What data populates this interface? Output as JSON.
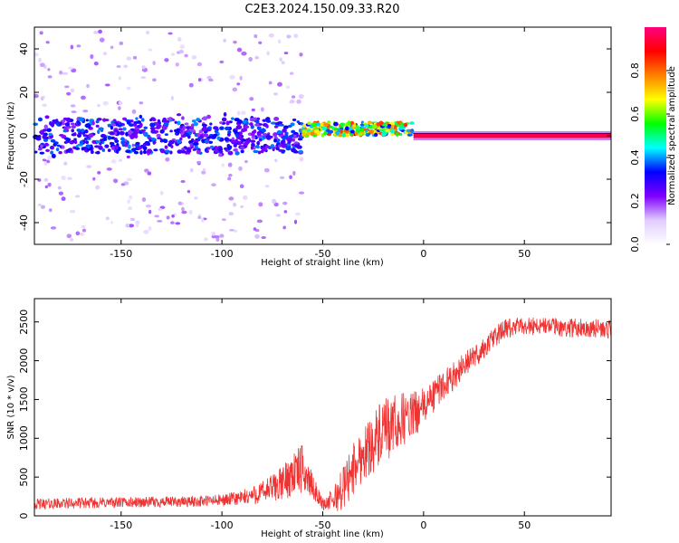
{
  "title": "C2E3.2024.150.09.33.R20",
  "colors": {
    "snr_line": "#ee3333",
    "axis": "#000000",
    "spectrum_low": "#e7d9ff",
    "spectrum_mid": "#6a00ff",
    "spectrum_high": "#ff0044"
  },
  "chart_data": [
    {
      "type": "heatmap",
      "name": "spectrogram",
      "title": "C2E3.2024.150.09.33.R20",
      "xlabel": "Height of straight line (km)",
      "ylabel": "Frequency (Hz)",
      "xlim": [
        -193,
        93
      ],
      "ylim": [
        -50,
        50
      ],
      "x_ticks": [
        -150,
        -100,
        -50,
        0,
        50
      ],
      "y_ticks": [
        -40,
        -20,
        0,
        20,
        40
      ],
      "colorbar": {
        "label": "Normalized spectral amplitude",
        "range": [
          0,
          1
        ],
        "ticks": [
          "0.0",
          "0.2",
          "0.4",
          "0.6",
          "0.8"
        ],
        "tick_values": [
          0.0,
          0.2,
          0.4,
          0.6,
          0.8
        ],
        "colormap": [
          "#ffffff",
          "#e0ccff",
          "#7f00ff",
          "#0000ff",
          "#00ffff",
          "#00ff00",
          "#ffff00",
          "#ff8000",
          "#ff0000",
          "#ff0080"
        ]
      },
      "features": [
        {
          "x_range": [
            -193,
            -60
          ],
          "freq_center": 0,
          "freq_halfwidth": 8,
          "amplitude": 0.25,
          "description": "noisy broadband signal"
        },
        {
          "x_range": [
            -60,
            -5
          ],
          "freq_center": 3,
          "freq_halfwidth": 3,
          "amplitude": 0.7,
          "description": "rising narrowband signal"
        },
        {
          "x_range": [
            -5,
            93
          ],
          "freq_center": 0,
          "freq_halfwidth": 1,
          "amplitude": 0.95,
          "description": "strong carrier line"
        }
      ]
    },
    {
      "type": "line",
      "name": "snr",
      "title": "",
      "xlabel": "Height of straight line (km)",
      "ylabel": "SNR (10 * v/v)",
      "xlim": [
        -193,
        93
      ],
      "ylim": [
        0,
        2800
      ],
      "x_ticks": [
        -150,
        -100,
        -50,
        0,
        50
      ],
      "y_ticks": [
        0,
        500,
        1000,
        1500,
        2000,
        2500
      ],
      "series": [
        {
          "name": "SNR",
          "x": [
            -193,
            -180,
            -160,
            -140,
            -120,
            -100,
            -90,
            -80,
            -70,
            -65,
            -60,
            -55,
            -50,
            -45,
            -40,
            -35,
            -30,
            -25,
            -20,
            -15,
            -10,
            -5,
            0,
            5,
            10,
            15,
            20,
            25,
            30,
            35,
            40,
            50,
            60,
            70,
            80,
            93
          ],
          "y": [
            150,
            160,
            170,
            175,
            180,
            200,
            230,
            300,
            420,
            550,
            600,
            380,
            150,
            200,
            350,
            600,
            800,
            950,
            1050,
            1150,
            1250,
            1300,
            1400,
            1550,
            1700,
            1800,
            1950,
            2050,
            2150,
            2300,
            2400,
            2450,
            2450,
            2420,
            2430,
            2400
          ],
          "noise": [
            70,
            70,
            70,
            70,
            70,
            80,
            100,
            150,
            220,
            300,
            320,
            150,
            80,
            150,
            300,
            350,
            350,
            400,
            450,
            400,
            350,
            300,
            250,
            220,
            200,
            180,
            160,
            150,
            150,
            140,
            130,
            120,
            120,
            120,
            120,
            120
          ]
        }
      ]
    }
  ]
}
